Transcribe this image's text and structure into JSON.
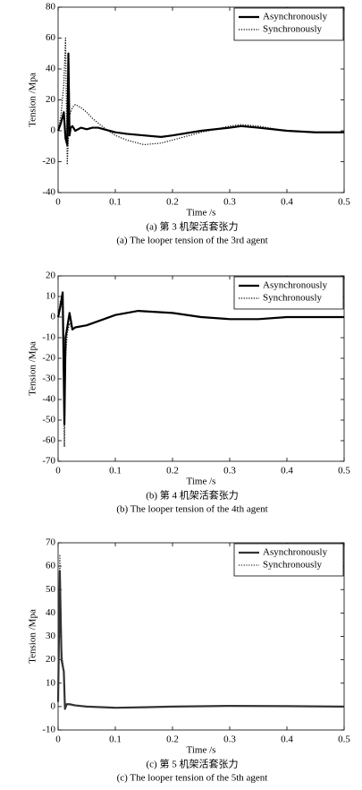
{
  "chart_data": [
    {
      "type": "line",
      "xlabel": "Time /s",
      "ylabel": "Tension /Mpa",
      "caption_cn": "(a) 第 3 机架活套张力",
      "caption_en": "(a) The looper tension of the 3rd agent",
      "x": [
        0,
        0.005,
        0.01,
        0.013,
        0.016,
        0.018,
        0.02,
        0.022,
        0.025,
        0.03,
        0.04,
        0.05,
        0.06,
        0.07,
        0.08,
        0.1,
        0.12,
        0.15,
        0.18,
        0.2,
        0.25,
        0.3,
        0.32,
        0.35,
        0.4,
        0.45,
        0.5
      ],
      "series": [
        {
          "name": "Asynchronously",
          "color": "#000000",
          "style": "solid",
          "values": [
            0,
            5,
            12,
            -5,
            -9,
            50,
            -3,
            2,
            3,
            0,
            2,
            1,
            2,
            2,
            1,
            -1,
            -2,
            -3,
            -4,
            -3,
            0,
            2,
            3,
            2,
            0,
            -1,
            -1
          ]
        },
        {
          "name": "Synchronously",
          "color": "#000000",
          "style": "dotted",
          "values": [
            0,
            10,
            30,
            60,
            -22,
            -5,
            10,
            12,
            15,
            17,
            15,
            12,
            8,
            5,
            2,
            -3,
            -6,
            -9,
            -8,
            -6,
            -1,
            3,
            4,
            3,
            0,
            -1,
            -1
          ]
        }
      ],
      "xlim": [
        0,
        0.5
      ],
      "xticks": [
        0,
        0.1,
        0.2,
        0.3,
        0.4,
        0.5
      ],
      "ylim": [
        -40,
        80
      ],
      "yticks": [
        -40,
        -20,
        0,
        20,
        40,
        60,
        80
      ],
      "legend": "upper right"
    },
    {
      "type": "line",
      "xlabel": "Time /s",
      "ylabel": "Tension /Mpa",
      "caption_cn": "(b) 第 4 机架活套张力",
      "caption_en": "(b) The looper tension of the 4th agent",
      "x": [
        0,
        0.004,
        0.008,
        0.011,
        0.013,
        0.016,
        0.02,
        0.025,
        0.03,
        0.05,
        0.08,
        0.1,
        0.14,
        0.2,
        0.25,
        0.3,
        0.35,
        0.4,
        0.45,
        0.5
      ],
      "series": [
        {
          "name": "Asynchronously",
          "color": "#000000",
          "style": "solid",
          "values": [
            0,
            5,
            12,
            -52,
            -10,
            -5,
            2,
            -6,
            -5,
            -4,
            -1,
            1,
            3,
            2,
            0,
            -1,
            -1,
            0,
            0,
            0
          ]
        },
        {
          "name": "Synchronously",
          "color": "#000000",
          "style": "dotted",
          "values": [
            0,
            8,
            10,
            -63,
            -20,
            -8,
            -3,
            -6,
            -5,
            -4,
            -1,
            1,
            3,
            2,
            0,
            -1,
            -1,
            0,
            0,
            0
          ]
        }
      ],
      "xlim": [
        0,
        0.5
      ],
      "xticks": [
        0,
        0.1,
        0.2,
        0.3,
        0.4,
        0.5
      ],
      "ylim": [
        -70,
        20
      ],
      "yticks": [
        -70,
        -60,
        -50,
        -40,
        -30,
        -20,
        -10,
        0,
        10,
        20
      ],
      "legend": "upper right"
    },
    {
      "type": "line",
      "xlabel": "Time /s",
      "ylabel": "Tension /Mpa",
      "caption_cn": "(c) 第 5 机架活套张力",
      "caption_en": "(c) The looper tension of the 5th agent",
      "x": [
        0,
        0.003,
        0.006,
        0.01,
        0.012,
        0.015,
        0.02,
        0.03,
        0.05,
        0.1,
        0.15,
        0.2,
        0.3,
        0.4,
        0.5
      ],
      "series": [
        {
          "name": "Asynchronously",
          "color": "#333333",
          "style": "solid",
          "values": [
            2,
            58,
            20,
            15,
            -1,
            1,
            1,
            0.5,
            0,
            -0.5,
            -0.3,
            0,
            0.3,
            0.2,
            0
          ]
        },
        {
          "name": "Synchronously",
          "color": "#333333",
          "style": "dotted",
          "values": [
            2,
            65,
            25,
            14,
            -1,
            1,
            1,
            0.5,
            0,
            -0.5,
            -0.3,
            0,
            0.3,
            0.2,
            0
          ]
        }
      ],
      "xlim": [
        0,
        0.5
      ],
      "xticks": [
        0,
        0.1,
        0.2,
        0.3,
        0.4,
        0.5
      ],
      "ylim": [
        -10,
        70
      ],
      "yticks": [
        -10,
        0,
        10,
        20,
        30,
        40,
        50,
        60,
        70
      ],
      "legend": "upper right"
    }
  ]
}
